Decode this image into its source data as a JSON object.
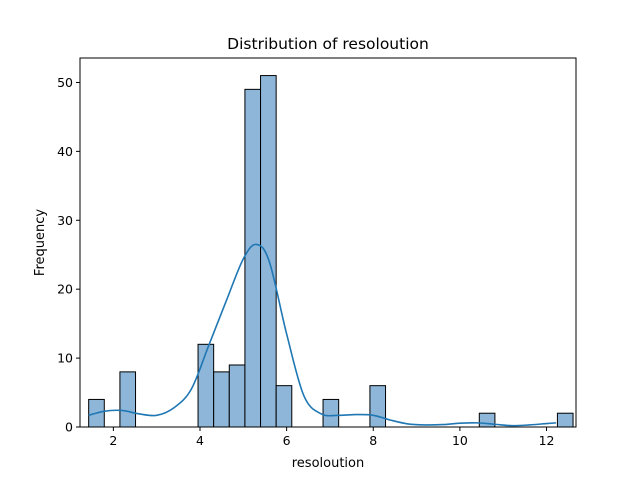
{
  "chart_data": {
    "type": "bar",
    "title": "Distribution of resoloution",
    "xlabel": "resoloution",
    "ylabel": "Frequency",
    "xlim": [
      1.23,
      12.68
    ],
    "ylim": [
      0,
      53.55
    ],
    "xticks": [
      "2",
      "4",
      "6",
      "8",
      "10",
      "12"
    ],
    "xtick_values": [
      2,
      4,
      6,
      8,
      10,
      12
    ],
    "yticks": [
      "0",
      "10",
      "20",
      "30",
      "40",
      "50"
    ],
    "ytick_values": [
      0,
      10,
      20,
      30,
      40,
      50
    ],
    "bin_start": 1.43,
    "bin_width": 0.3607,
    "bins": [
      {
        "count": 4,
        "values_note": "bin 0"
      },
      {
        "count": 0
      },
      {
        "count": 8
      },
      {
        "count": 0
      },
      {
        "count": 0
      },
      {
        "count": 0
      },
      {
        "count": 0
      },
      {
        "count": 12
      },
      {
        "count": 8
      },
      {
        "count": 9
      },
      {
        "count": 49
      },
      {
        "count": 51
      },
      {
        "count": 6
      },
      {
        "count": 0
      },
      {
        "count": 0
      },
      {
        "count": 4
      },
      {
        "count": 0
      },
      {
        "count": 0
      },
      {
        "count": 6
      },
      {
        "count": 0
      },
      {
        "count": 0
      },
      {
        "count": 0
      },
      {
        "count": 0
      },
      {
        "count": 0
      },
      {
        "count": 0
      },
      {
        "count": 2
      },
      {
        "count": 0
      },
      {
        "count": 0
      },
      {
        "count": 0
      },
      {
        "count": 0
      },
      {
        "count": 2
      }
    ],
    "kde": {
      "x": [
        1.43,
        1.8,
        2.2,
        2.6,
        3.0,
        3.4,
        3.8,
        4.2,
        4.6,
        5.0,
        5.3,
        5.6,
        6.0,
        6.4,
        6.8,
        7.2,
        7.6,
        8.0,
        8.4,
        8.8,
        9.2,
        9.6,
        10.0,
        10.4,
        10.8,
        11.2,
        11.6,
        12.0,
        12.22
      ],
      "y": [
        1.7,
        2.3,
        2.4,
        1.9,
        1.7,
        2.8,
        5.5,
        11.8,
        18.2,
        24.4,
        26.5,
        24.0,
        13.5,
        4.5,
        1.9,
        1.7,
        1.8,
        1.7,
        1.0,
        0.45,
        0.3,
        0.35,
        0.55,
        0.6,
        0.4,
        0.2,
        0.3,
        0.5,
        0.6
      ]
    },
    "grid": false,
    "legend": "none",
    "colors": {
      "bar_fill": "#8db6d9",
      "bar_edge": "#000000",
      "kde_line": "#1f77b4"
    }
  }
}
